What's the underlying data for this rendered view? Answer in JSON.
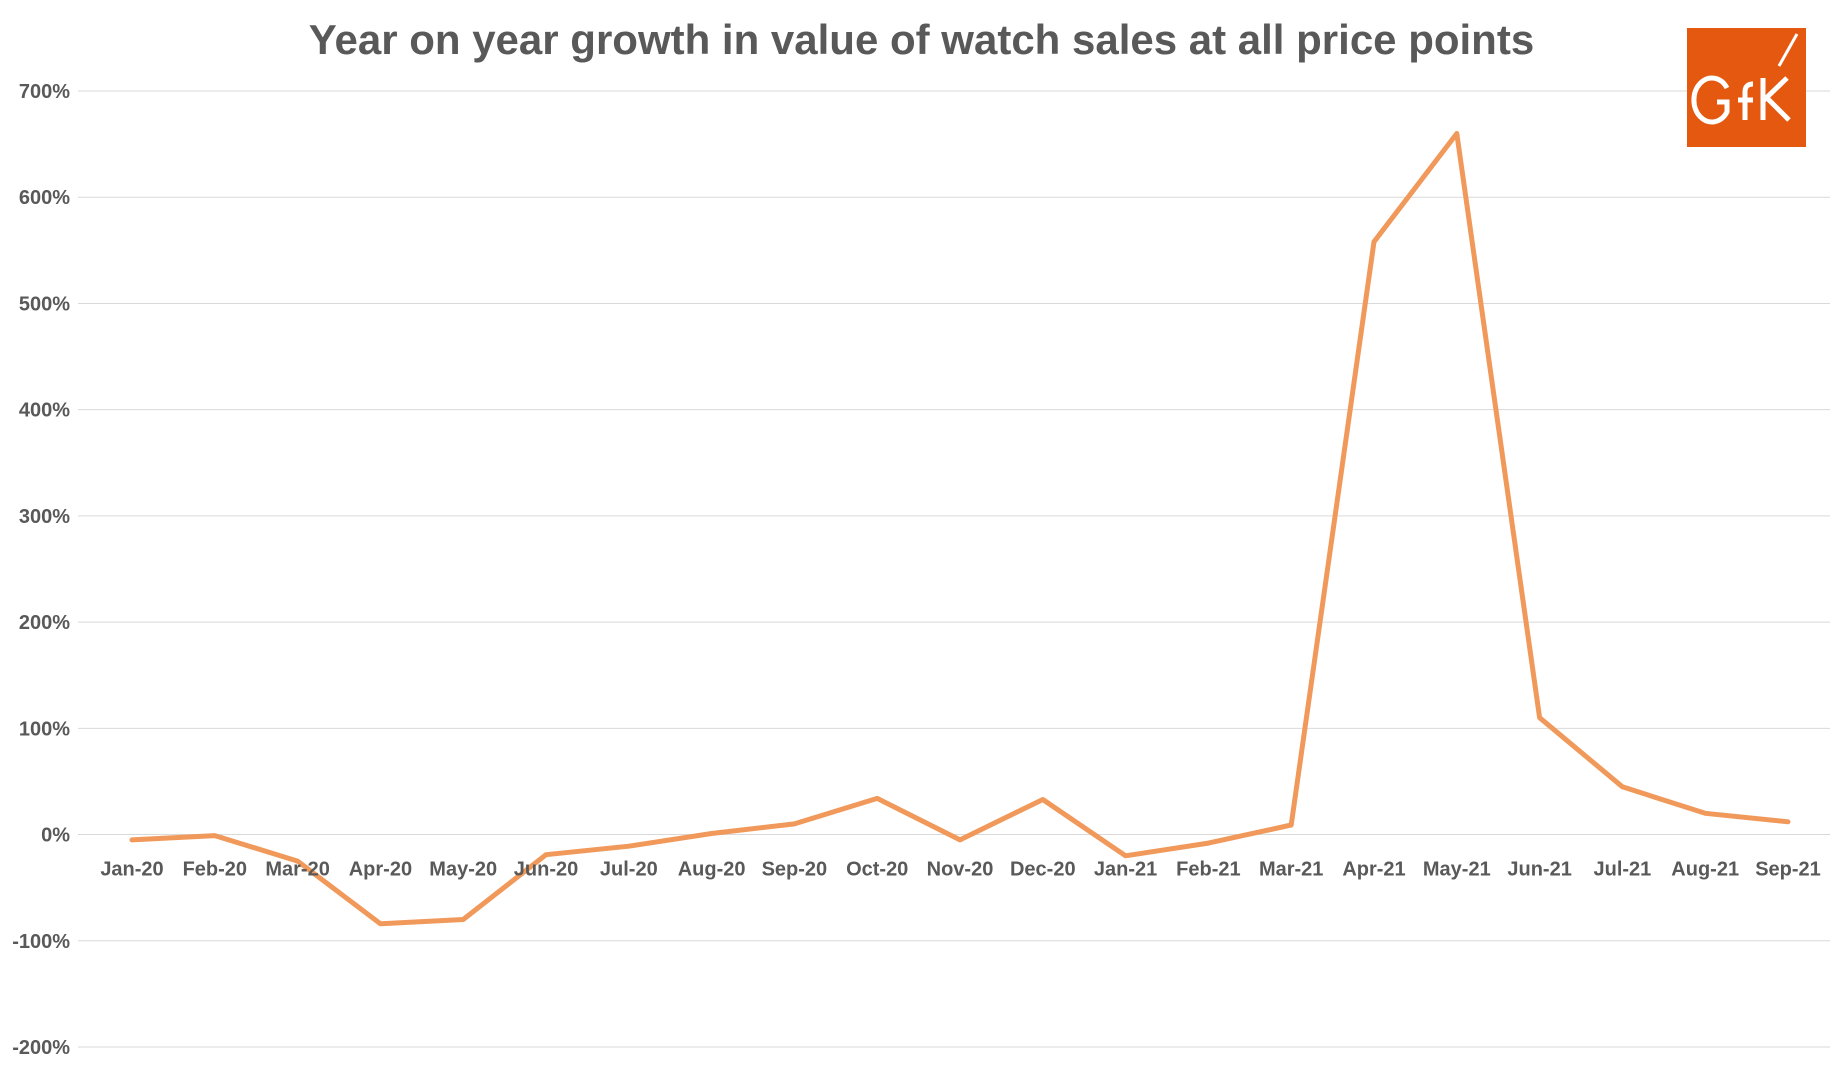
{
  "chart_data": {
    "type": "line",
    "title": "Year on year growth in value of watch sales at all price points",
    "xlabel": "",
    "ylabel": "",
    "categories": [
      "Jan-20",
      "Feb-20",
      "Mar-20",
      "Apr-20",
      "May-20",
      "Jun-20",
      "Jul-20",
      "Aug-20",
      "Sep-20",
      "Oct-20",
      "Nov-20",
      "Dec-20",
      "Jan-21",
      "Feb-21",
      "Mar-21",
      "Apr-21",
      "May-21",
      "Jun-21",
      "Jul-21",
      "Aug-21",
      "Sep-21"
    ],
    "series": [
      {
        "values": [
          -5,
          -1,
          -25,
          -84,
          -80,
          -19,
          -11,
          1,
          10,
          34,
          -5,
          33,
          -20,
          -8,
          9,
          558,
          660,
          110,
          45,
          20,
          12
        ]
      }
    ],
    "ylim": [
      -200,
      700
    ],
    "yticks": [
      -200,
      -100,
      0,
      100,
      200,
      300,
      400,
      500,
      600,
      700
    ],
    "ytick_labels": [
      "-200%",
      "-100%",
      "0%",
      "100%",
      "200%",
      "300%",
      "400%",
      "500%",
      "600%",
      "700%"
    ],
    "grid": true,
    "legend": "none",
    "line_color": "#F0995A"
  },
  "logo": {
    "text": "GfK",
    "color": "#E5580F"
  }
}
